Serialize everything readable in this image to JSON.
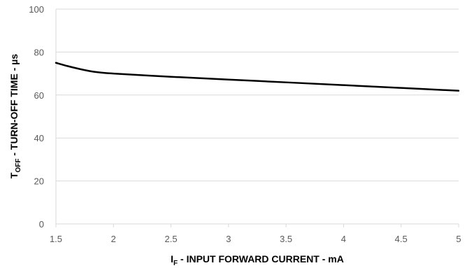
{
  "chart_data": {
    "type": "line",
    "title": "",
    "xlabel": {
      "main": "I",
      "sub": "F",
      "rest": " - INPUT FORWARD CURRENT - mA"
    },
    "ylabel": {
      "main": "T",
      "sub": "OFF",
      "rest": " - TURN-OFF TIME - µs"
    },
    "xlim": [
      1.5,
      5
    ],
    "ylim": [
      0,
      100
    ],
    "x_ticks": [
      1.5,
      2,
      2.5,
      3,
      3.5,
      4,
      4.5,
      5
    ],
    "x_tick_labels": [
      "1.5",
      "2",
      "2.5",
      "3",
      "3.5",
      "4",
      "4.5",
      "5"
    ],
    "y_ticks": [
      0,
      20,
      40,
      60,
      80,
      100
    ],
    "y_tick_labels": [
      "0",
      "20",
      "40",
      "60",
      "80",
      "100"
    ],
    "grid": "horizontal",
    "series": [
      {
        "x": [
          1.5,
          1.6,
          1.7,
          1.8,
          1.9,
          2.0,
          2.5,
          3.0,
          3.5,
          4.0,
          4.5,
          5.0
        ],
        "y": [
          75,
          73.5,
          72.2,
          71.1,
          70.4,
          70,
          68.5,
          67.2,
          65.9,
          64.6,
          63.3,
          62
        ],
        "color": "#000000"
      }
    ]
  }
}
